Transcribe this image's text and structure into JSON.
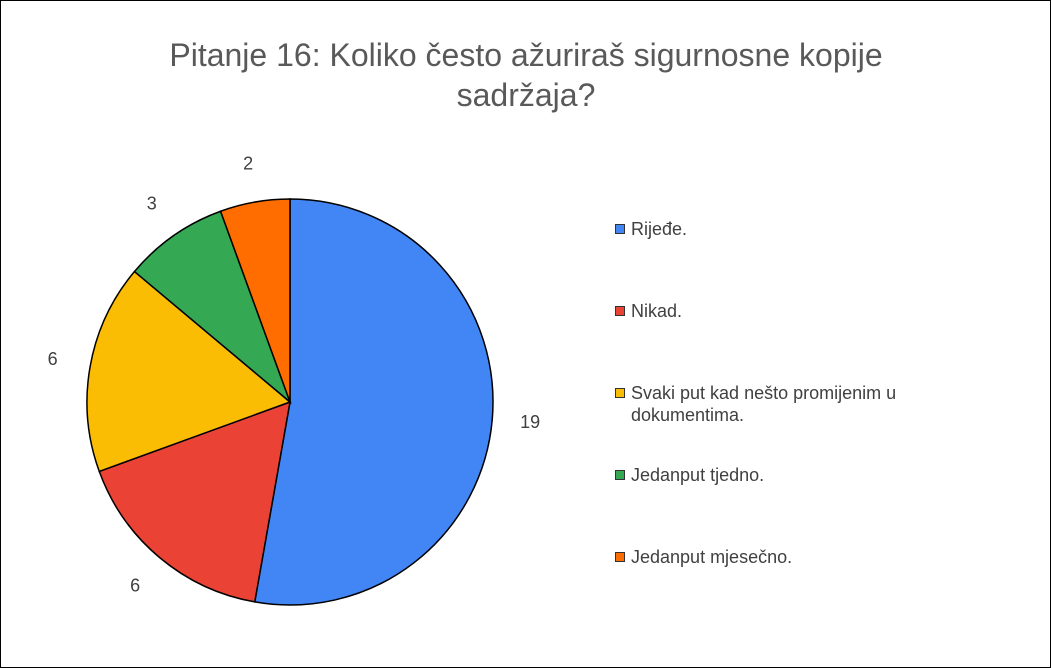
{
  "chart_data": {
    "type": "pie",
    "title": "Pitanje 16: Koliko često ažuriraš sigurnosne kopije sadržaja?",
    "categories": [
      "Rijeđe.",
      "Nikad.",
      "Svaki put kad nešto promijenim u dokumentima.",
      "Jedanput tjedno.",
      "Jedanput mjesečno."
    ],
    "values": [
      19,
      6,
      6,
      3,
      2
    ],
    "colors": [
      "#4285f4",
      "#ea4335",
      "#fbbc04",
      "#34a853",
      "#ff6d01"
    ],
    "legend": "right"
  }
}
